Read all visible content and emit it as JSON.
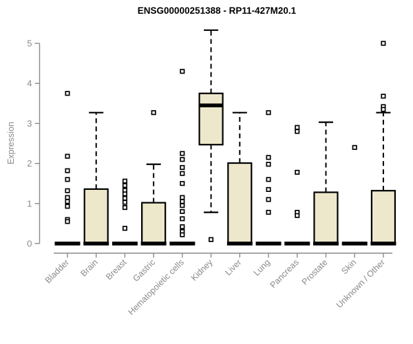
{
  "chart_data": {
    "type": "boxplot",
    "title": "ENSG00000251388 - RP11-427M20.1",
    "ylabel": "Expression",
    "xlabel": "",
    "yticks": [
      0,
      1,
      2,
      3,
      4,
      5
    ],
    "ylim": [
      0,
      5.45
    ],
    "grid": false,
    "legend": "none",
    "categories": [
      "Bladder",
      "Brain",
      "Breast",
      "Gastric",
      "Hematopoietic cells",
      "Kidney",
      "Liver",
      "Lung",
      "Pancreas",
      "Prostate",
      "Skin",
      "Unknown / Other"
    ],
    "groups": [
      {
        "name": "Bladder",
        "q1": 0,
        "median": 0,
        "q3": 0,
        "whisker_low": 0,
        "whisker_high": 0,
        "outliers": [
          3.75,
          2.18,
          1.82,
          1.6,
          1.32,
          1.15,
          1.05,
          0.93,
          0.6,
          0.55
        ]
      },
      {
        "name": "Brain",
        "q1": 0,
        "median": 0,
        "q3": 1.36,
        "whisker_low": 0,
        "whisker_high": 3.27,
        "outliers": []
      },
      {
        "name": "Breast",
        "q1": 0,
        "median": 0,
        "q3": 0,
        "whisker_low": 0,
        "whisker_high": 0,
        "outliers": [
          1.56,
          1.45,
          1.33,
          1.24,
          1.13,
          1.03,
          0.9,
          0.38
        ]
      },
      {
        "name": "Gastric",
        "q1": 0,
        "median": 0,
        "q3": 1.02,
        "whisker_low": 0,
        "whisker_high": 1.98,
        "outliers": [
          3.27
        ]
      },
      {
        "name": "Hematopoietic cells",
        "q1": 0,
        "median": 0,
        "q3": 0,
        "whisker_low": 0,
        "whisker_high": 0,
        "outliers": [
          4.3,
          2.25,
          2.1,
          1.9,
          1.75,
          1.5,
          1.15,
          1.05,
          0.95,
          0.8,
          0.62,
          0.42,
          0.3,
          0.22
        ]
      },
      {
        "name": "Kidney",
        "q1": 2.47,
        "median": 3.45,
        "q3": 3.75,
        "whisker_low": 0.78,
        "whisker_high": 5.33,
        "outliers": [
          0.1
        ]
      },
      {
        "name": "Liver",
        "q1": 0,
        "median": 0,
        "q3": 2.01,
        "whisker_low": 0,
        "whisker_high": 3.27,
        "outliers": []
      },
      {
        "name": "Lung",
        "q1": 0,
        "median": 0,
        "q3": 0,
        "whisker_low": 0,
        "whisker_high": 0,
        "outliers": [
          3.27,
          2.15,
          1.98,
          1.6,
          1.35,
          1.1,
          0.78
        ]
      },
      {
        "name": "Pancreas",
        "q1": 0,
        "median": 0,
        "q3": 0,
        "whisker_low": 0,
        "whisker_high": 0,
        "outliers": [
          2.9,
          2.8,
          1.78,
          0.78,
          0.7
        ]
      },
      {
        "name": "Prostate",
        "q1": 0,
        "median": 0,
        "q3": 1.28,
        "whisker_low": 0,
        "whisker_high": 3.03,
        "outliers": []
      },
      {
        "name": "Skin",
        "q1": 0,
        "median": 0,
        "q3": 0,
        "whisker_low": 0,
        "whisker_high": 0,
        "outliers": [
          2.4
        ]
      },
      {
        "name": "Unknown / Other",
        "q1": 0,
        "median": 0,
        "q3": 1.32,
        "whisker_low": 0,
        "whisker_high": 3.27,
        "outliers": [
          5.0,
          3.68,
          3.42,
          3.35
        ]
      }
    ],
    "colors": {
      "box_fill": "#ede7cc",
      "box_border": "#000000",
      "median": "#000000",
      "whisker": "#000000",
      "outlier_border": "#000000",
      "outlier_fill": "#ffffff",
      "axis": "#8a8a8a",
      "tick_label": "#8a8a8a",
      "title": "#000000"
    }
  }
}
